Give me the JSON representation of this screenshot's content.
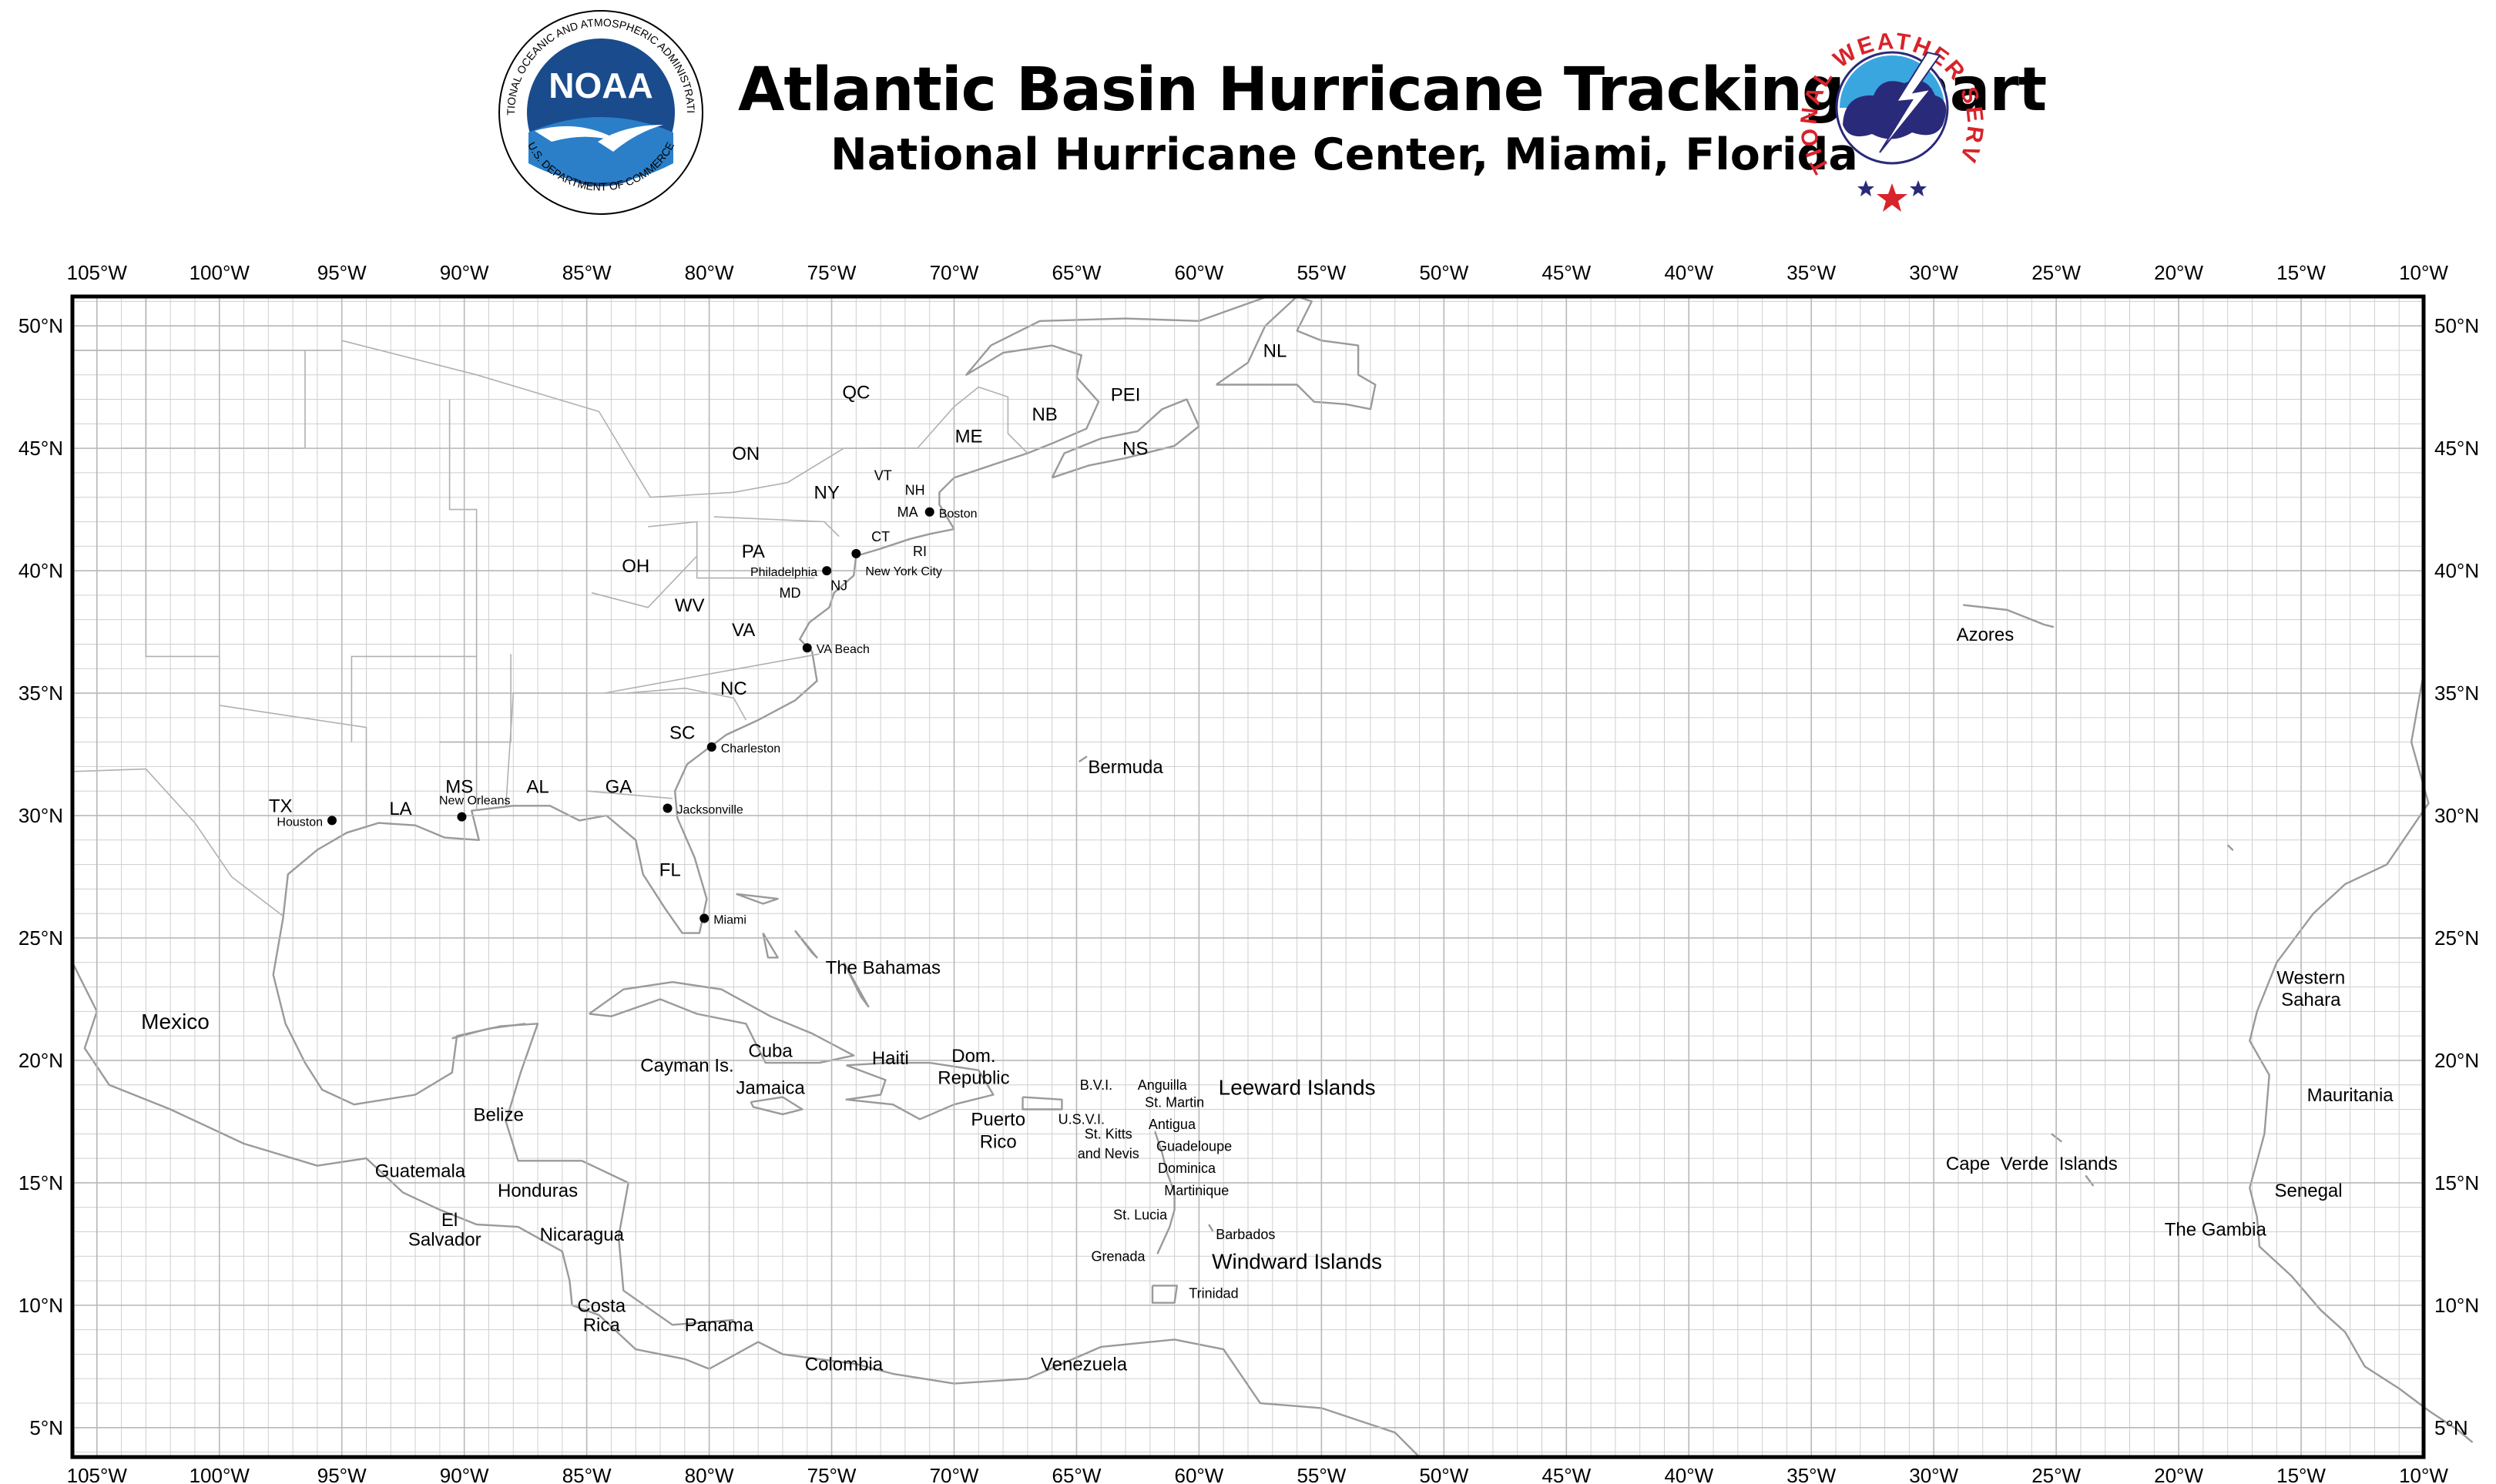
{
  "header": {
    "title": "Atlantic Basin Hurricane Tracking Chart",
    "subtitle": "National Hurricane Center, Miami, Florida",
    "noaa_logo_text": "NOAA",
    "noaa_ring_text": "NATIONAL OCEANIC AND ATMOSPHERIC ADMINISTRATION",
    "noaa_ring_text_bottom": "U.S. DEPARTMENT OF COMMERCE",
    "nws_ring_text": "NATIONAL WEATHER SERVICE"
  },
  "colors": {
    "noaa_blue": "#1a4b8c",
    "noaa_light_blue": "#2a7fc8",
    "nws_red": "#d8232a",
    "nws_purple": "#2a2a7a",
    "nws_sky": "#39a6e0",
    "grid": "#cfcfcf",
    "land_outline": "#9a9a9a"
  },
  "grid": {
    "lon_labels": [
      "105°W",
      "100°W",
      "95°W",
      "90°W",
      "85°W",
      "80°W",
      "75°W",
      "70°W",
      "65°W",
      "60°W",
      "55°W",
      "50°W",
      "45°W",
      "40°W",
      "35°W",
      "30°W",
      "25°W",
      "20°W",
      "15°W",
      "10°W"
    ],
    "lat_labels": [
      "50°N",
      "45°N",
      "40°N",
      "35°N",
      "30°N",
      "25°N",
      "20°N",
      "15°N",
      "10°N",
      "5°N"
    ],
    "lon_values": [
      -105,
      -100,
      -95,
      -90,
      -85,
      -80,
      -75,
      -70,
      -65,
      -60,
      -55,
      -50,
      -45,
      -40,
      -35,
      -30,
      -25,
      -20,
      -15,
      -10
    ],
    "lat_values": [
      50,
      45,
      40,
      35,
      30,
      25,
      20,
      15,
      10,
      5
    ],
    "lon_range": [
      -106,
      -10
    ],
    "lat_range": [
      3.8,
      51.2
    ],
    "minor_step_deg": 1
  },
  "cities": [
    {
      "name": "Boston",
      "lon": -71.0,
      "lat": 42.4
    },
    {
      "name": "New York City",
      "lon": -74.0,
      "lat": 40.7
    },
    {
      "name": "Philadelphia",
      "lon": -75.2,
      "lat": 40.0
    },
    {
      "name": "VA Beach",
      "lon": -76.0,
      "lat": 36.85
    },
    {
      "name": "Charleston",
      "lon": -79.9,
      "lat": 32.8
    },
    {
      "name": "Jacksonville",
      "lon": -81.7,
      "lat": 30.3
    },
    {
      "name": "Miami",
      "lon": -80.2,
      "lat": 25.8
    },
    {
      "name": "New Orleans",
      "lon": -90.1,
      "lat": 29.95
    },
    {
      "name": "Houston",
      "lon": -95.4,
      "lat": 29.8
    }
  ],
  "labels": [
    {
      "text": "QC",
      "lon": -74.0,
      "lat": 47.3,
      "size": "m"
    },
    {
      "text": "ON",
      "lon": -78.5,
      "lat": 44.8,
      "size": "m"
    },
    {
      "text": "NY",
      "lon": -75.2,
      "lat": 43.2,
      "size": "m"
    },
    {
      "text": "VT",
      "lon": -72.9,
      "lat": 43.9,
      "size": "s"
    },
    {
      "text": "NH",
      "lon": -71.6,
      "lat": 43.3,
      "size": "s"
    },
    {
      "text": "ME",
      "lon": -69.4,
      "lat": 45.5,
      "size": "m"
    },
    {
      "text": "NB",
      "lon": -66.3,
      "lat": 46.4,
      "size": "m"
    },
    {
      "text": "PEI",
      "lon": -63.0,
      "lat": 47.2,
      "size": "m"
    },
    {
      "text": "NS",
      "lon": -62.6,
      "lat": 45.0,
      "size": "m"
    },
    {
      "text": "NL",
      "lon": -56.9,
      "lat": 49.0,
      "size": "m"
    },
    {
      "text": "MA",
      "lon": -71.9,
      "lat": 42.4,
      "size": "s"
    },
    {
      "text": "CT",
      "lon": -73.0,
      "lat": 41.4,
      "size": "s"
    },
    {
      "text": "RI",
      "lon": -71.4,
      "lat": 40.8,
      "size": "s"
    },
    {
      "text": "PA",
      "lon": -78.2,
      "lat": 40.8,
      "size": "m"
    },
    {
      "text": "NJ",
      "lon": -74.7,
      "lat": 39.4,
      "size": "s"
    },
    {
      "text": "MD",
      "lon": -76.7,
      "lat": 39.1,
      "size": "s"
    },
    {
      "text": "OH",
      "lon": -83.0,
      "lat": 40.2,
      "size": "m"
    },
    {
      "text": "WV",
      "lon": -80.8,
      "lat": 38.6,
      "size": "m"
    },
    {
      "text": "VA",
      "lon": -78.6,
      "lat": 37.6,
      "size": "m"
    },
    {
      "text": "NC",
      "lon": -79.0,
      "lat": 35.2,
      "size": "m"
    },
    {
      "text": "SC",
      "lon": -81.1,
      "lat": 33.4,
      "size": "m"
    },
    {
      "text": "GA",
      "lon": -83.7,
      "lat": 31.2,
      "size": "m"
    },
    {
      "text": "AL",
      "lon": -87.0,
      "lat": 31.2,
      "size": "m"
    },
    {
      "text": "MS",
      "lon": -90.2,
      "lat": 31.2,
      "size": "m"
    },
    {
      "text": "LA",
      "lon": -92.6,
      "lat": 30.3,
      "size": "m"
    },
    {
      "text": "TX",
      "lon": -97.5,
      "lat": 30.4,
      "size": "m"
    },
    {
      "text": "FL",
      "lon": -81.6,
      "lat": 27.8,
      "size": "m"
    },
    {
      "text": "Bermuda",
      "lon": -63.0,
      "lat": 32.0,
      "size": "m"
    },
    {
      "text": "Azores",
      "lon": -27.9,
      "lat": 37.4,
      "size": "m"
    },
    {
      "text": "The Bahamas",
      "lon": -72.9,
      "lat": 23.8,
      "size": "m"
    },
    {
      "text": "Mexico",
      "lon": -101.8,
      "lat": 21.6,
      "size": "l"
    },
    {
      "text": "Cuba",
      "lon": -77.5,
      "lat": 20.4,
      "size": "m"
    },
    {
      "text": "Haiti",
      "lon": -72.6,
      "lat": 20.1,
      "size": "m"
    },
    {
      "text": "Dom.",
      "lon": -69.2,
      "lat": 20.2,
      "size": "m"
    },
    {
      "text": "Republic",
      "lon": -69.2,
      "lat": 19.3,
      "size": "m"
    },
    {
      "text": "Cayman Is.",
      "lon": -80.9,
      "lat": 19.8,
      "size": "m"
    },
    {
      "text": "Jamaica",
      "lon": -77.5,
      "lat": 18.9,
      "size": "m"
    },
    {
      "text": "B.V.I.",
      "lon": -64.2,
      "lat": 19.0,
      "size": "s"
    },
    {
      "text": "Anguilla",
      "lon": -61.5,
      "lat": 19.0,
      "size": "s"
    },
    {
      "text": "St. Martin",
      "lon": -61.0,
      "lat": 18.3,
      "size": "s"
    },
    {
      "text": "Leeward Islands",
      "lon": -56.0,
      "lat": 18.9,
      "size": "l"
    },
    {
      "text": "Puerto",
      "lon": -68.2,
      "lat": 17.6,
      "size": "m"
    },
    {
      "text": "Rico",
      "lon": -68.2,
      "lat": 16.7,
      "size": "m"
    },
    {
      "text": "U.S.V.I.",
      "lon": -64.8,
      "lat": 17.6,
      "size": "s"
    },
    {
      "text": "St. Kitts",
      "lon": -63.7,
      "lat": 17.0,
      "size": "s"
    },
    {
      "text": "and Nevis",
      "lon": -63.7,
      "lat": 16.2,
      "size": "s"
    },
    {
      "text": "Antigua",
      "lon": -61.1,
      "lat": 17.4,
      "size": "s"
    },
    {
      "text": "Guadeloupe",
      "lon": -60.2,
      "lat": 16.5,
      "size": "s"
    },
    {
      "text": "Dominica",
      "lon": -60.5,
      "lat": 15.6,
      "size": "s"
    },
    {
      "text": "Martinique",
      "lon": -60.1,
      "lat": 14.7,
      "size": "s"
    },
    {
      "text": "St. Lucia",
      "lon": -62.4,
      "lat": 13.7,
      "size": "s"
    },
    {
      "text": "Barbados",
      "lon": -58.1,
      "lat": 12.9,
      "size": "s"
    },
    {
      "text": "Grenada",
      "lon": -63.3,
      "lat": 12.0,
      "size": "s"
    },
    {
      "text": "Windward Islands",
      "lon": -56.0,
      "lat": 11.8,
      "size": "l"
    },
    {
      "text": "Trinidad",
      "lon": -59.4,
      "lat": 10.5,
      "size": "s"
    },
    {
      "text": "Belize",
      "lon": -88.6,
      "lat": 17.8,
      "size": "m"
    },
    {
      "text": "Guatemala",
      "lon": -91.8,
      "lat": 15.5,
      "size": "m"
    },
    {
      "text": "Honduras",
      "lon": -87.0,
      "lat": 14.7,
      "size": "m"
    },
    {
      "text": "El",
      "lon": -90.6,
      "lat": 13.5,
      "size": "m"
    },
    {
      "text": "Salvador",
      "lon": -90.8,
      "lat": 12.7,
      "size": "m"
    },
    {
      "text": "Nicaragua",
      "lon": -85.2,
      "lat": 12.9,
      "size": "m"
    },
    {
      "text": "Costa",
      "lon": -84.4,
      "lat": 10.0,
      "size": "m"
    },
    {
      "text": "Rica",
      "lon": -84.4,
      "lat": 9.2,
      "size": "m"
    },
    {
      "text": "Panama",
      "lon": -79.6,
      "lat": 9.2,
      "size": "m"
    },
    {
      "text": "Colombia",
      "lon": -74.5,
      "lat": 7.6,
      "size": "m"
    },
    {
      "text": "Venezuela",
      "lon": -64.7,
      "lat": 7.6,
      "size": "m"
    },
    {
      "text": "Western",
      "lon": -14.6,
      "lat": 23.4,
      "size": "m"
    },
    {
      "text": "Sahara",
      "lon": -14.6,
      "lat": 22.5,
      "size": "m"
    },
    {
      "text": "Mauritania",
      "lon": -13.0,
      "lat": 18.6,
      "size": "m"
    },
    {
      "text": "Cape  Verde  Islands",
      "lon": -26.0,
      "lat": 15.8,
      "size": "m"
    },
    {
      "text": "Senegal",
      "lon": -14.7,
      "lat": 14.7,
      "size": "m"
    },
    {
      "text": "The Gambia",
      "lon": -18.5,
      "lat": 13.1,
      "size": "m"
    }
  ]
}
